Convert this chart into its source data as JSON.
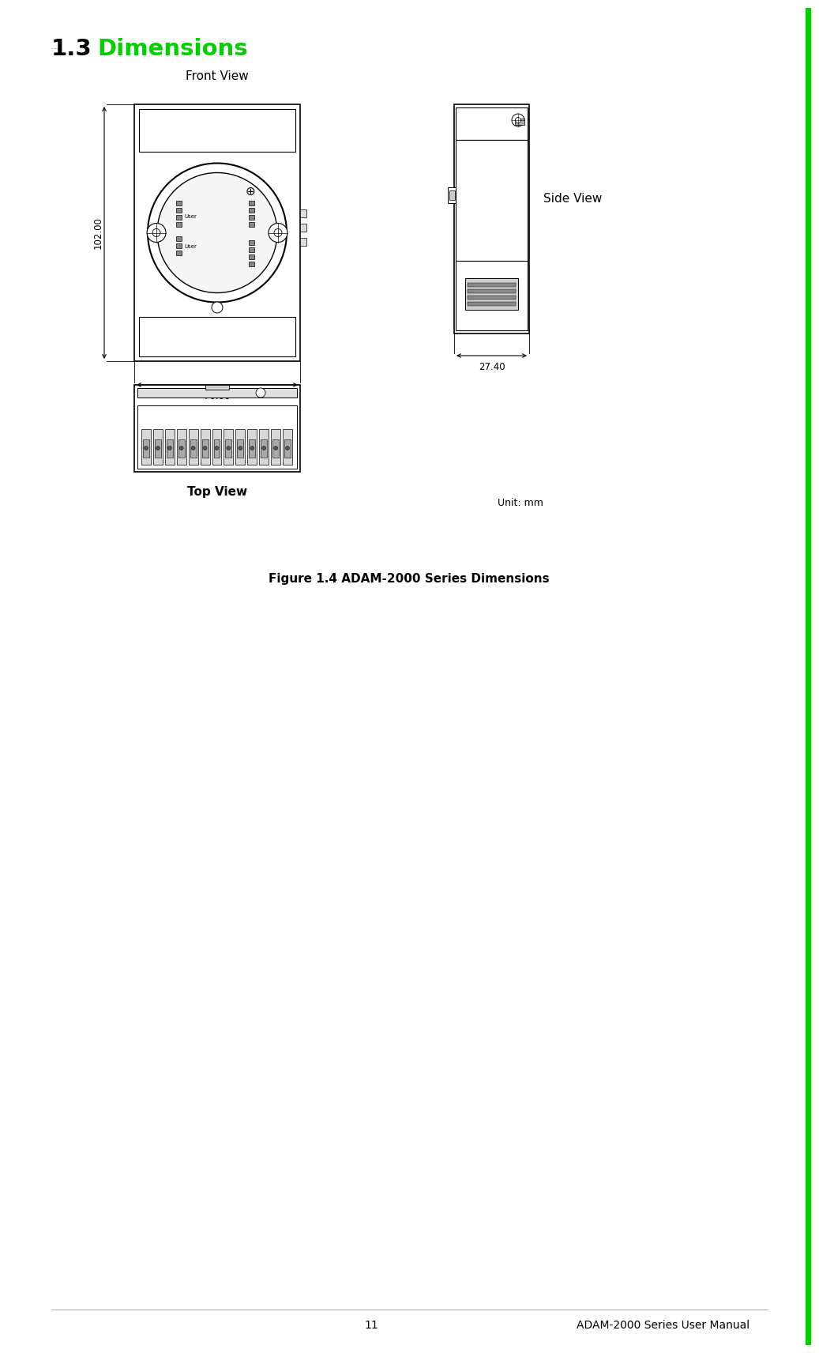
{
  "bg_color": "#ffffff",
  "border_color": "#00cc00",
  "title_section": "1.3",
  "title_text": "Dimensions",
  "title_color": "#00cc00",
  "figure_caption": "Figure 1.4 ADAM-2000 Series Dimensions",
  "footer_page": "11",
  "footer_text": "ADAM-2000 Series User Manual",
  "unit_label": "Unit: mm",
  "front_view_label": "Front View",
  "side_view_label": "Side View",
  "top_view_label": "Top View",
  "dim_102": "102.00",
  "dim_70": "70.00",
  "dim_27": "27.40",
  "line_color": "#000000",
  "draw_color": "#333333"
}
